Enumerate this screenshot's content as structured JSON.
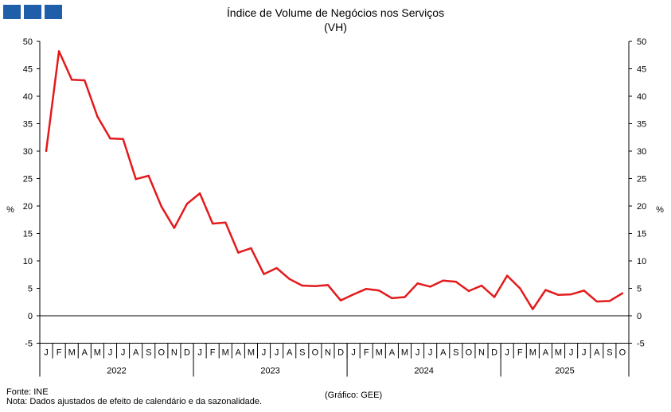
{
  "logo": {
    "name": "logo-boxes",
    "boxes": 3,
    "color": "#1f5ea8"
  },
  "chart_data": {
    "type": "line",
    "title": "Índice de Volume de Negócios nos Serviços",
    "subtitle": "(VH)",
    "ylabel_left": "%",
    "ylabel_right": "%",
    "ylim": [
      -5,
      50
    ],
    "yticks": [
      -5,
      0,
      5,
      10,
      15,
      20,
      25,
      30,
      35,
      40,
      45,
      50
    ],
    "grid": false,
    "line_color": "#e31a1c",
    "months": [
      "J",
      "F",
      "M",
      "A",
      "M",
      "J",
      "J",
      "A",
      "S",
      "O",
      "N",
      "D",
      "J",
      "F",
      "M",
      "A",
      "M",
      "J",
      "J",
      "A",
      "S",
      "O",
      "N",
      "D",
      "J",
      "F",
      "M",
      "A",
      "M",
      "J",
      "J",
      "A",
      "S",
      "O",
      "N",
      "D",
      "J",
      "F",
      "M",
      "A",
      "M",
      "J",
      "J",
      "A",
      "S",
      "O"
    ],
    "years": [
      {
        "label": "2022",
        "months": 12
      },
      {
        "label": "2023",
        "months": 12
      },
      {
        "label": "2024",
        "months": 12
      },
      {
        "label": "2025",
        "months": 10
      }
    ],
    "series": [
      {
        "values": [
          30.0,
          48.2,
          43.0,
          42.9,
          36.3,
          32.3,
          32.2,
          24.9,
          25.5,
          19.9,
          16.0,
          20.4,
          22.3,
          16.8,
          17.0,
          11.5,
          12.3,
          7.6,
          8.7,
          6.7,
          5.5,
          5.4,
          5.6,
          2.8,
          3.9,
          4.9,
          4.6,
          3.2,
          3.4,
          5.9,
          5.3,
          6.4,
          6.2,
          4.5,
          5.5,
          3.4,
          7.3,
          5.0,
          1.2,
          4.7,
          3.8,
          3.9,
          4.6,
          2.6,
          2.7,
          4.1
        ]
      }
    ]
  },
  "footer": {
    "source": "Fonte: INE",
    "note": "Nota: Dados ajustados de efeito de calendário e da sazonalidade.",
    "credit": "(Gráfico: GEE)"
  }
}
